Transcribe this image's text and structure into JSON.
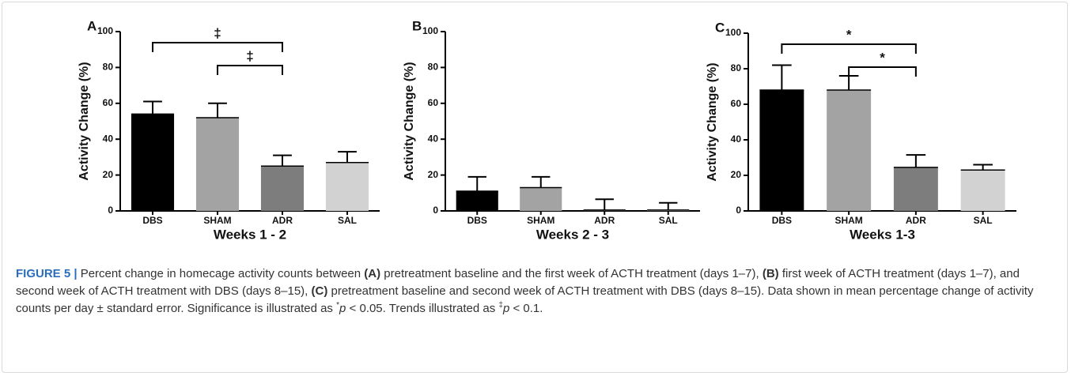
{
  "chart_data": [
    {
      "type": "bar",
      "panel": "A",
      "x_label": "Weeks 1 - 2",
      "y_label": "Activity Change (%)",
      "categories": [
        "DBS",
        "SHAM",
        "ADR",
        "SAL"
      ],
      "values": [
        54,
        52,
        25,
        27
      ],
      "errors": [
        7,
        8,
        6,
        6
      ],
      "colors": [
        "#000000",
        "#a3a3a3",
        "#7d7d7d",
        "#d2d2d2"
      ],
      "ylim": [
        0,
        100
      ],
      "yticks": [
        0,
        20,
        40,
        60,
        80,
        100
      ],
      "annotations": [
        {
          "from": "DBS",
          "to": "ADR",
          "label": "‡"
        },
        {
          "from": "SHAM",
          "to": "ADR",
          "label": "‡"
        }
      ]
    },
    {
      "type": "bar",
      "panel": "B",
      "x_label": "Weeks 2 - 3",
      "y_label": "Activity Change (%)",
      "categories": [
        "DBS",
        "SHAM",
        "ADR",
        "SAL"
      ],
      "values": [
        11,
        13,
        0.5,
        0.5
      ],
      "errors": [
        8,
        6,
        6,
        4
      ],
      "colors": [
        "#000000",
        "#a3a3a3",
        "#7d7d7d",
        "#d2d2d2"
      ],
      "ylim": [
        0,
        100
      ],
      "yticks": [
        0,
        20,
        40,
        60,
        80,
        100
      ],
      "annotations": []
    },
    {
      "type": "bar",
      "panel": "C",
      "x_label": "Weeks 1-3",
      "y_label": "Activity Change (%)",
      "categories": [
        "DBS",
        "SHAM",
        "ADR",
        "SAL"
      ],
      "values": [
        68,
        68,
        24.5,
        23
      ],
      "errors": [
        14,
        8,
        7,
        3
      ],
      "colors": [
        "#000000",
        "#a3a3a3",
        "#7d7d7d",
        "#d2d2d2"
      ],
      "ylim": [
        0,
        100
      ],
      "yticks": [
        0,
        20,
        40,
        60,
        80,
        100
      ],
      "annotations": [
        {
          "from": "DBS",
          "to": "ADR",
          "label": "*"
        },
        {
          "from": "SHAM",
          "to": "ADR",
          "label": "*"
        }
      ]
    }
  ],
  "caption": [
    "FIGURE 5 |",
    " Percent change in homecage activity counts between ",
    "(A)",
    " pretreatment baseline and the first week of ACTH treatment (days 1–7), ",
    "(B)",
    " first week of ACTH treatment (days 1–7), and second week of ACTH treatment with DBS (days 8–15), ",
    "(C)",
    " pretreatment baseline and second week of ACTH treatment with DBS (days 8–15). Data shown in mean percentage change of activity counts per day ± standard error. Significance is illustrated as ",
    "*",
    "p",
    " < 0.05. Trends illustrated as ",
    "‡",
    "p",
    " < 0.1."
  ]
}
